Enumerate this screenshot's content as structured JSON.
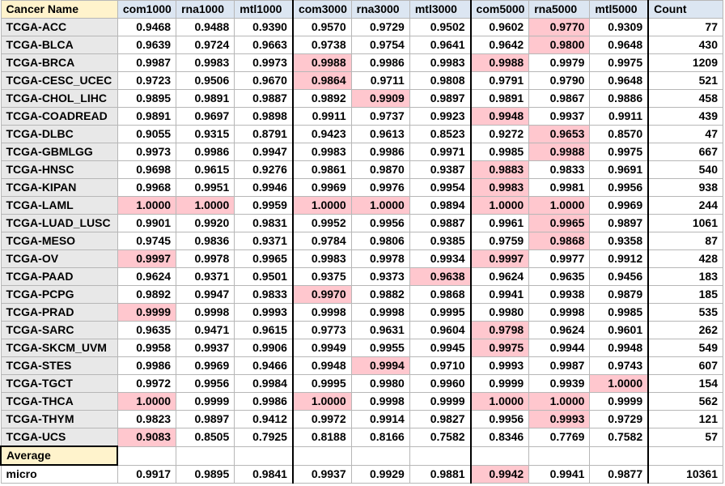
{
  "headers": [
    "Cancer Name",
    "com1000",
    "rna1000",
    "mtl1000",
    "com3000",
    "rna3000",
    "mtl3000",
    "com5000",
    "rna5000",
    "mtl5000",
    "Count"
  ],
  "highlight_color": "#ffc7ce",
  "rows": [
    {
      "name": "TCGA-ACC",
      "v": [
        "0.9468",
        "0.9488",
        "0.9390",
        "0.9570",
        "0.9729",
        "0.9502",
        "0.9602",
        "0.9770",
        "0.9309"
      ],
      "count": "77",
      "hl": [
        7
      ]
    },
    {
      "name": "TCGA-BLCA",
      "v": [
        "0.9639",
        "0.9724",
        "0.9663",
        "0.9738",
        "0.9754",
        "0.9641",
        "0.9642",
        "0.9800",
        "0.9648"
      ],
      "count": "430",
      "hl": [
        7
      ]
    },
    {
      "name": "TCGA-BRCA",
      "v": [
        "0.9987",
        "0.9983",
        "0.9973",
        "0.9988",
        "0.9986",
        "0.9983",
        "0.9988",
        "0.9979",
        "0.9975"
      ],
      "count": "1209",
      "hl": [
        3,
        6
      ]
    },
    {
      "name": "TCGA-CESC_UCEC",
      "v": [
        "0.9723",
        "0.9506",
        "0.9670",
        "0.9864",
        "0.9711",
        "0.9808",
        "0.9791",
        "0.9790",
        "0.9648"
      ],
      "count": "521",
      "hl": [
        3
      ]
    },
    {
      "name": "TCGA-CHOL_LIHC",
      "v": [
        "0.9895",
        "0.9891",
        "0.9887",
        "0.9892",
        "0.9909",
        "0.9897",
        "0.9891",
        "0.9867",
        "0.9886"
      ],
      "count": "458",
      "hl": [
        4
      ]
    },
    {
      "name": "TCGA-COADREAD",
      "v": [
        "0.9891",
        "0.9697",
        "0.9898",
        "0.9911",
        "0.9737",
        "0.9923",
        "0.9948",
        "0.9937",
        "0.9911"
      ],
      "count": "439",
      "hl": [
        6
      ]
    },
    {
      "name": "TCGA-DLBC",
      "v": [
        "0.9055",
        "0.9315",
        "0.8791",
        "0.9423",
        "0.9613",
        "0.8523",
        "0.9272",
        "0.9653",
        "0.8570"
      ],
      "count": "47",
      "hl": [
        7
      ]
    },
    {
      "name": "TCGA-GBMLGG",
      "v": [
        "0.9973",
        "0.9986",
        "0.9947",
        "0.9983",
        "0.9986",
        "0.9971",
        "0.9985",
        "0.9988",
        "0.9975"
      ],
      "count": "667",
      "hl": [
        7
      ]
    },
    {
      "name": "TCGA-HNSC",
      "v": [
        "0.9698",
        "0.9615",
        "0.9276",
        "0.9861",
        "0.9870",
        "0.9387",
        "0.9883",
        "0.9833",
        "0.9691"
      ],
      "count": "540",
      "hl": [
        6
      ]
    },
    {
      "name": "TCGA-KIPAN",
      "v": [
        "0.9968",
        "0.9951",
        "0.9946",
        "0.9969",
        "0.9976",
        "0.9954",
        "0.9983",
        "0.9981",
        "0.9956"
      ],
      "count": "938",
      "hl": [
        6
      ]
    },
    {
      "name": "TCGA-LAML",
      "v": [
        "1.0000",
        "1.0000",
        "0.9959",
        "1.0000",
        "1.0000",
        "0.9894",
        "1.0000",
        "1.0000",
        "0.9969"
      ],
      "count": "244",
      "hl": [
        0,
        1,
        3,
        4,
        6,
        7
      ]
    },
    {
      "name": "TCGA-LUAD_LUSC",
      "v": [
        "0.9901",
        "0.9920",
        "0.9831",
        "0.9952",
        "0.9956",
        "0.9887",
        "0.9961",
        "0.9965",
        "0.9897"
      ],
      "count": "1061",
      "hl": [
        7
      ]
    },
    {
      "name": "TCGA-MESO",
      "v": [
        "0.9745",
        "0.9836",
        "0.9371",
        "0.9784",
        "0.9806",
        "0.9385",
        "0.9759",
        "0.9868",
        "0.9358"
      ],
      "count": "87",
      "hl": [
        7
      ]
    },
    {
      "name": "TCGA-OV",
      "v": [
        "0.9997",
        "0.9978",
        "0.9965",
        "0.9983",
        "0.9978",
        "0.9934",
        "0.9997",
        "0.9977",
        "0.9912"
      ],
      "count": "428",
      "hl": [
        0,
        6
      ]
    },
    {
      "name": "TCGA-PAAD",
      "v": [
        "0.9624",
        "0.9371",
        "0.9501",
        "0.9375",
        "0.9373",
        "0.9638",
        "0.9624",
        "0.9635",
        "0.9456"
      ],
      "count": "183",
      "hl": [
        5
      ]
    },
    {
      "name": "TCGA-PCPG",
      "v": [
        "0.9892",
        "0.9947",
        "0.9833",
        "0.9970",
        "0.9882",
        "0.9868",
        "0.9941",
        "0.9938",
        "0.9879"
      ],
      "count": "185",
      "hl": [
        3
      ]
    },
    {
      "name": "TCGA-PRAD",
      "v": [
        "0.9999",
        "0.9998",
        "0.9993",
        "0.9998",
        "0.9998",
        "0.9995",
        "0.9980",
        "0.9998",
        "0.9985"
      ],
      "count": "535",
      "hl": [
        0
      ]
    },
    {
      "name": "TCGA-SARC",
      "v": [
        "0.9635",
        "0.9471",
        "0.9615",
        "0.9773",
        "0.9631",
        "0.9604",
        "0.9798",
        "0.9624",
        "0.9601"
      ],
      "count": "262",
      "hl": [
        6
      ]
    },
    {
      "name": "TCGA-SKCM_UVM",
      "v": [
        "0.9958",
        "0.9937",
        "0.9906",
        "0.9949",
        "0.9955",
        "0.9945",
        "0.9975",
        "0.9944",
        "0.9948"
      ],
      "count": "549",
      "hl": [
        6
      ]
    },
    {
      "name": "TCGA-STES",
      "v": [
        "0.9986",
        "0.9969",
        "0.9466",
        "0.9948",
        "0.9994",
        "0.9710",
        "0.9993",
        "0.9987",
        "0.9743"
      ],
      "count": "607",
      "hl": [
        4
      ]
    },
    {
      "name": "TCGA-TGCT",
      "v": [
        "0.9972",
        "0.9956",
        "0.9984",
        "0.9995",
        "0.9980",
        "0.9960",
        "0.9999",
        "0.9939",
        "1.0000"
      ],
      "count": "154",
      "hl": [
        8
      ]
    },
    {
      "name": "TCGA-THCA",
      "v": [
        "1.0000",
        "0.9999",
        "0.9986",
        "1.0000",
        "0.9998",
        "0.9999",
        "1.0000",
        "1.0000",
        "0.9999"
      ],
      "count": "562",
      "hl": [
        0,
        3,
        6,
        7
      ]
    },
    {
      "name": "TCGA-THYM",
      "v": [
        "0.9823",
        "0.9897",
        "0.9412",
        "0.9972",
        "0.9914",
        "0.9827",
        "0.9956",
        "0.9993",
        "0.9729"
      ],
      "count": "121",
      "hl": [
        7
      ]
    },
    {
      "name": "TCGA-UCS",
      "v": [
        "0.9083",
        "0.8505",
        "0.7925",
        "0.8188",
        "0.8166",
        "0.7582",
        "0.8346",
        "0.7769",
        "0.7582"
      ],
      "count": "57",
      "hl": [
        0
      ]
    }
  ],
  "average_label": "Average",
  "micro": {
    "name": "micro",
    "v": [
      "0.9917",
      "0.9895",
      "0.9841",
      "0.9937",
      "0.9929",
      "0.9881",
      "0.9942",
      "0.9941",
      "0.9877"
    ],
    "count": "10361",
    "hl": [
      6
    ]
  }
}
